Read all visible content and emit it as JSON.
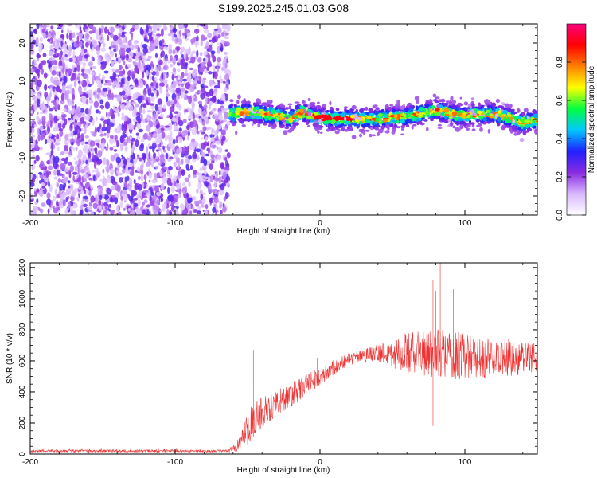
{
  "chart_data": [
    {
      "type": "heatmap",
      "title": "S199.2025.245.01.03.G08",
      "xlabel": "Height of straight line (km)",
      "ylabel": "Frequency (Hz)",
      "xlim": [
        -200,
        150
      ],
      "ylim": [
        -25,
        25
      ],
      "x_ticks": [
        -200,
        -100,
        0,
        100
      ],
      "y_ticks": [
        20,
        10,
        0,
        -10,
        -20
      ],
      "noise_region_x": [
        -200,
        -63
      ],
      "signal_ridge": {
        "x": [
          -62,
          -50,
          -40,
          -30,
          -20,
          -12,
          -5,
          0,
          10,
          20,
          30,
          40,
          50,
          60,
          70,
          80,
          90,
          100,
          110,
          120,
          130,
          140,
          150
        ],
        "freq_hz": [
          1.5,
          2.0,
          1.5,
          1.0,
          0.3,
          2.0,
          1.0,
          0.5,
          0.2,
          0.2,
          0.0,
          0.2,
          0.5,
          0.8,
          1.5,
          2.5,
          1.5,
          1.0,
          1.5,
          1.5,
          0.5,
          -1.0,
          0.0
        ]
      },
      "colorbar": {
        "label": "Normalized spectral amplitude",
        "range": [
          0,
          1
        ],
        "ticks": [
          "0.0",
          "0.2",
          "0.4",
          "0.6",
          "0.8"
        ],
        "colors": [
          "#ffffff",
          "#d9b8ff",
          "#8a2be2",
          "#2020ff",
          "#00c8ff",
          "#00ff40",
          "#ffff00",
          "#ff8000",
          "#ff0000",
          "#ff0080"
        ]
      }
    },
    {
      "type": "line",
      "title": "",
      "xlabel": "Height of straight line (km)",
      "ylabel": "SNR (10 * v/v)",
      "xlim": [
        -200,
        150
      ],
      "ylim": [
        0,
        1230
      ],
      "x_ticks": [
        -200,
        -100,
        0,
        100
      ],
      "y_ticks": [
        0,
        200,
        400,
        600,
        800,
        1000,
        1200
      ],
      "line_color": "#ee3333",
      "series": [
        {
          "name": "SNR",
          "envelope": {
            "x": [
              -200,
              -64,
              -58,
              -55,
              -50,
              -45,
              -40,
              -30,
              -20,
              -10,
              0,
              10,
              20,
              30,
              40,
              50,
              60,
              70,
              80,
              90,
              100,
              110,
              120,
              130,
              140,
              150
            ],
            "mean": [
              20,
              20,
              40,
              100,
              170,
              230,
              270,
              330,
              380,
              440,
              500,
              560,
              610,
              630,
              650,
              650,
              650,
              650,
              650,
              640,
              630,
              620,
              620,
              620,
              620,
              620
            ],
            "spread": [
              8,
              8,
              30,
              80,
              110,
              110,
              100,
              90,
              80,
              70,
              60,
              50,
              40,
              40,
              60,
              100,
              130,
              150,
              160,
              160,
              150,
              140,
              130,
              120,
              110,
              100
            ]
          },
          "peaks": [
            {
              "x": -46,
              "y": 670
            },
            {
              "x": -2,
              "y": 620
            },
            {
              "x": 78,
              "y": 1120
            },
            {
              "x": 80,
              "y": 1050
            },
            {
              "x": 83,
              "y": 1230
            },
            {
              "x": 92,
              "y": 1060
            },
            {
              "x": 120,
              "y": 1020
            },
            {
              "x": 78,
              "y": 180
            },
            {
              "x": 120,
              "y": 120
            }
          ]
        }
      ]
    }
  ]
}
